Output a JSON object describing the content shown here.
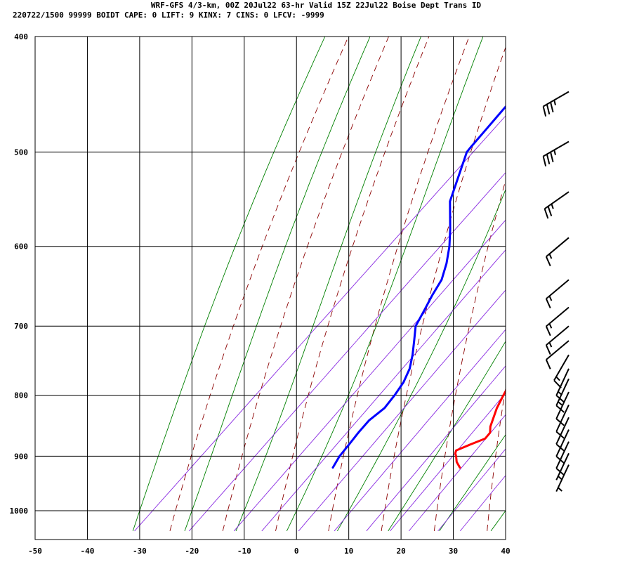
{
  "header": {
    "line1": "WRF-GFS 4/3-km, 00Z 20Jul22 63-hr Valid 15Z 22Jul22 Boise Dept Trans ID",
    "line2": "220722/1500 99999  BOIDT   CAPE:      0 LIFT:     9 KINX:     7 CINS:     0 LFCV: -9999"
  },
  "colors": {
    "temperature": "#ff0000",
    "dewpoint": "#0000ff",
    "dry_adiabat": "#8b0000",
    "moist_adiabat": "#008000",
    "mixing_ratio": "#8a2be2",
    "grid": "#000000"
  },
  "chart_data": {
    "type": "line",
    "chart_kind": "skew-T log-P sounding",
    "x_axis": {
      "range": [
        -50,
        40
      ],
      "ticks": [
        "-50",
        "-40",
        "-30",
        "-20",
        "-10",
        "0",
        "10",
        "20",
        "30",
        "40"
      ]
    },
    "y_axis": {
      "scale": "log",
      "range": [
        1040,
        400
      ],
      "ticks": [
        "400",
        "500",
        "600",
        "700",
        "800",
        "900",
        "1000"
      ]
    },
    "grid": true,
    "series": [
      {
        "key": "temperature",
        "points": [
          [
            920,
            23.0
          ],
          [
            910,
            21.3
          ],
          [
            900,
            20.1
          ],
          [
            895,
            19.4
          ],
          [
            890,
            19.0
          ],
          [
            880,
            20.6
          ],
          [
            870,
            22.3
          ],
          [
            860,
            22.1
          ],
          [
            850,
            21.0
          ],
          [
            820,
            18.7
          ],
          [
            800,
            17.5
          ],
          [
            770,
            15.8
          ],
          [
            750,
            14.4
          ],
          [
            720,
            12.5
          ],
          [
            700,
            10.6
          ],
          [
            680,
            8.6
          ],
          [
            650,
            5.7
          ],
          [
            620,
            2.7
          ],
          [
            600,
            0.2
          ],
          [
            550,
            -6.0
          ],
          [
            500,
            -12.5
          ],
          [
            480,
            -15.3
          ],
          [
            450,
            -19.5
          ],
          [
            440,
            -21.2
          ]
        ]
      },
      {
        "key": "dewpoint",
        "points": [
          [
            920,
            -1.3
          ],
          [
            900,
            -2.2
          ],
          [
            880,
            -2.6
          ],
          [
            860,
            -3.1
          ],
          [
            840,
            -3.4
          ],
          [
            820,
            -2.8
          ],
          [
            800,
            -3.3
          ],
          [
            780,
            -4.1
          ],
          [
            760,
            -5.5
          ],
          [
            740,
            -7.6
          ],
          [
            720,
            -10.0
          ],
          [
            700,
            -12.5
          ],
          [
            680,
            -13.8
          ],
          [
            660,
            -15.2
          ],
          [
            640,
            -16.4
          ],
          [
            620,
            -18.6
          ],
          [
            600,
            -21.3
          ],
          [
            580,
            -24.5
          ],
          [
            550,
            -29.8
          ],
          [
            500,
            -36.0
          ],
          [
            495,
            -36.2
          ],
          [
            480,
            -36.6
          ],
          [
            460,
            -37.2
          ],
          [
            440,
            -37.6
          ]
        ]
      }
    ],
    "wind_barbs": [
      {
        "pressure": 445,
        "direction_deg": 240,
        "speed_kt": 35
      },
      {
        "pressure": 490,
        "direction_deg": 240,
        "speed_kt": 35
      },
      {
        "pressure": 540,
        "direction_deg": 235,
        "speed_kt": 25
      },
      {
        "pressure": 590,
        "direction_deg": 230,
        "speed_kt": 15
      },
      {
        "pressure": 640,
        "direction_deg": 230,
        "speed_kt": 15
      },
      {
        "pressure": 675,
        "direction_deg": 230,
        "speed_kt": 15
      },
      {
        "pressure": 700,
        "direction_deg": 230,
        "speed_kt": 15
      },
      {
        "pressure": 720,
        "direction_deg": 230,
        "speed_kt": 10
      },
      {
        "pressure": 740,
        "direction_deg": 210,
        "speed_kt": 15
      },
      {
        "pressure": 760,
        "direction_deg": 205,
        "speed_kt": 15
      },
      {
        "pressure": 775,
        "direction_deg": 205,
        "speed_kt": 15
      },
      {
        "pressure": 795,
        "direction_deg": 205,
        "speed_kt": 10
      },
      {
        "pressure": 815,
        "direction_deg": 205,
        "speed_kt": 10
      },
      {
        "pressure": 835,
        "direction_deg": 205,
        "speed_kt": 10
      },
      {
        "pressure": 855,
        "direction_deg": 205,
        "speed_kt": 10
      },
      {
        "pressure": 875,
        "direction_deg": 205,
        "speed_kt": 10
      },
      {
        "pressure": 895,
        "direction_deg": 205,
        "speed_kt": 5
      },
      {
        "pressure": 915,
        "direction_deg": 205,
        "speed_kt": 5
      }
    ]
  }
}
